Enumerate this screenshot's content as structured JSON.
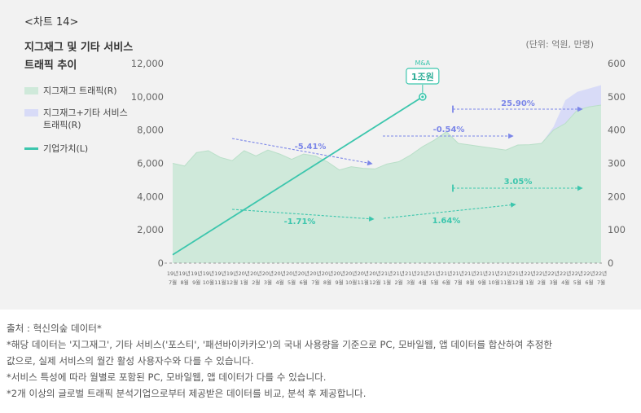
{
  "header": {
    "chart_no": "<차트 14>",
    "title_line1": "지그재그 및 기타 서비스",
    "title_line2": "트래픽 추이",
    "unit": "(단위: 억원, 만명)"
  },
  "legend": [
    {
      "label": "지그재그 트래픽(R)",
      "color": "#cfe9da"
    },
    {
      "label": "지그재그+기타 서비스\n트래픽(R)",
      "color": "#d8dbf7"
    },
    {
      "label": "기업가치(L)",
      "color": "#3cc6ad"
    }
  ],
  "chart_data": {
    "type": "area",
    "x": [
      "19년 7월",
      "19년 8월",
      "19년 9월",
      "19년 10월",
      "19년 11월",
      "19년 12월",
      "20년 1월",
      "20년 2월",
      "20년 3월",
      "20년 4월",
      "20년 5월",
      "20년 6월",
      "20년 7월",
      "20년 8월",
      "20년 9월",
      "20년 10월",
      "20년 11월",
      "20년 12월",
      "21년 1월",
      "21년 2월",
      "21년 3월",
      "21년 4월",
      "21년 5월",
      "21년 6월",
      "21년 7월",
      "21년 8월",
      "21년 9월",
      "21년 10월",
      "21년 11월",
      "21년 12월",
      "22년 1월",
      "22년 2월",
      "22년 3월",
      "22년 4월",
      "22년 5월",
      "22년 6월",
      "22년 7월"
    ],
    "x_tick_top": [
      "19년",
      "19년",
      "19년",
      "19년",
      "19년",
      "19년",
      "20년",
      "20년",
      "20년",
      "20년",
      "20년",
      "20년",
      "20년",
      "20년",
      "20년",
      "20년",
      "20년",
      "20년",
      "21년",
      "21년",
      "21년",
      "21년",
      "21년",
      "21년",
      "21년",
      "21년",
      "21년",
      "21년",
      "21년",
      "21년",
      "22년",
      "22년",
      "22년",
      "22년",
      "22년",
      "22년",
      "22년"
    ],
    "x_tick_bottom": [
      "7월",
      "8월",
      "9월",
      "10월",
      "11월",
      "12월",
      "1월",
      "2월",
      "3월",
      "4월",
      "5월",
      "6월",
      "7월",
      "8월",
      "9월",
      "10월",
      "11월",
      "12월",
      "1월",
      "2월",
      "3월",
      "4월",
      "5월",
      "6월",
      "7월",
      "8월",
      "9월",
      "10월",
      "11월",
      "12월",
      "1월",
      "2월",
      "3월",
      "4월",
      "5월",
      "6월",
      "7월"
    ],
    "y_left": {
      "ylim": [
        0,
        12000
      ],
      "ticks": [
        "0",
        "2,000",
        "4,000",
        "6,000",
        "8,000",
        "10,000",
        "12,000"
      ]
    },
    "y_right": {
      "ylim": [
        0,
        600
      ],
      "ticks": [
        "0",
        "100",
        "200",
        "300",
        "400",
        "500",
        "600"
      ]
    },
    "grid": false,
    "series": [
      {
        "name": "지그재그 트래픽(R)",
        "axis": "right",
        "type": "area",
        "color": "#cfe9da",
        "values": [
          300,
          292,
          332,
          338,
          318,
          308,
          338,
          322,
          340,
          328,
          312,
          328,
          322,
          305,
          280,
          290,
          285,
          283,
          298,
          305,
          325,
          350,
          370,
          395,
          360,
          355,
          350,
          345,
          340,
          355,
          356,
          360,
          400,
          420,
          460,
          470,
          475
        ]
      },
      {
        "name": "지그재그+기타 서비스 트래픽(R)",
        "axis": "right",
        "type": "area",
        "color": "#d8dbf7",
        "values": [
          300,
          292,
          332,
          338,
          318,
          308,
          338,
          322,
          340,
          328,
          312,
          328,
          322,
          305,
          280,
          290,
          285,
          283,
          298,
          305,
          325,
          350,
          370,
          395,
          360,
          355,
          350,
          345,
          340,
          355,
          356,
          360,
          410,
          490,
          515,
          525,
          535
        ]
      },
      {
        "name": "기업가치(L)",
        "axis": "left",
        "type": "line",
        "color": "#3cc6ad",
        "points": [
          {
            "x": "19년 7월",
            "y": 500
          },
          {
            "x": "21년 4월",
            "y": 10000
          }
        ]
      }
    ],
    "annotations": [
      {
        "text": "M&A",
        "x": "21년 4월"
      },
      {
        "text": "1조원",
        "x": "21년 4월"
      },
      {
        "text": "-5.41%",
        "color": "#7b86e8"
      },
      {
        "text": "-0.54%",
        "color": "#7b86e8"
      },
      {
        "text": "25.90%",
        "color": "#7b86e8"
      },
      {
        "text": "3.05%",
        "color": "#3cc6ad"
      },
      {
        "text": "-1.71%",
        "color": "#3cc6ad"
      },
      {
        "text": "1.64%",
        "color": "#3cc6ad"
      }
    ]
  },
  "notes": [
    "출처 : 혁신의숲 데이터*",
    "*해당 데이터는 '지그재그', 기타 서비스('포스티', '패션바이카카오')의 국내 사용량을 기준으로 PC, 모바일웹, 앱 데이터를 합산하여 추정한",
    "값으로, 실제 서비스의 월간 활성 사용자수와 다를 수 있습니다.",
    "*서비스 특성에 따라 월별로 포함된 PC, 모바일웹, 앱 데이터가 다를 수 있습니다.",
    "*2개 이상의 글로벌 트래픽 분석기업으로부터 제공받은 데이터를 비교, 분석 후 제공합니다."
  ]
}
